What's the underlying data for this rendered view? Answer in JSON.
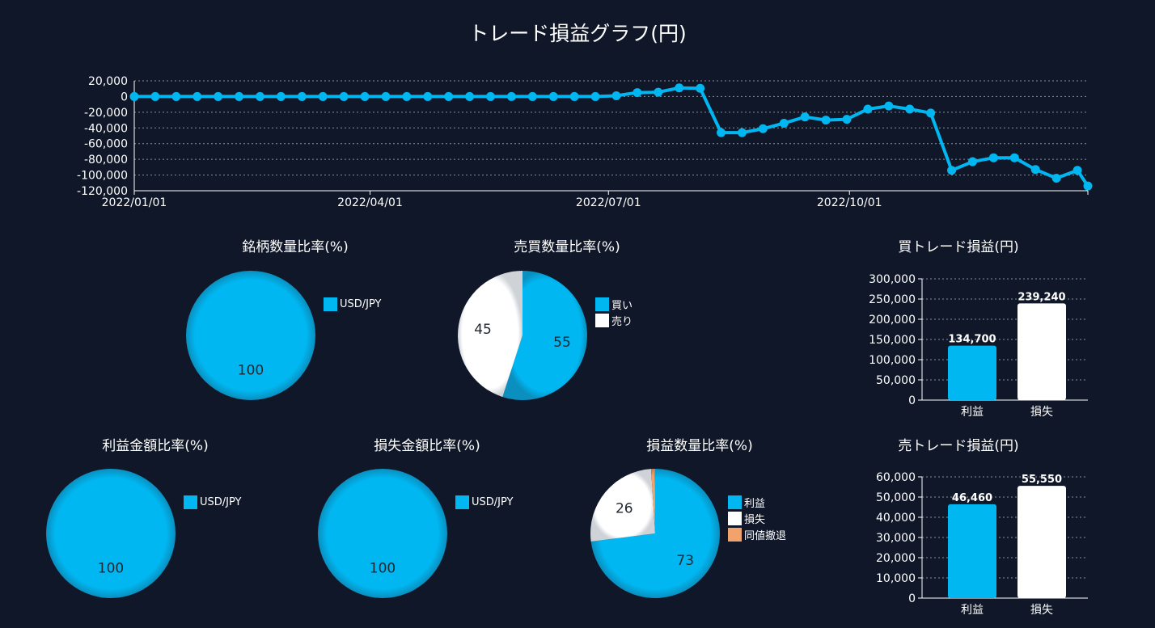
{
  "page_title": "トレード損益グラフ(円)",
  "colors": {
    "primary": "#00b7f1",
    "secondary": "#ffffff",
    "tertiary": "#f2a36b",
    "background": "#0f1729",
    "grid": "#8a9099"
  },
  "chart_data": [
    {
      "id": "pnl_line",
      "type": "line",
      "title": "",
      "x_type": "date",
      "x_tick_labels": [
        "2022/01/01",
        "2022/04/01",
        "2022/07/01",
        "2022/10/01"
      ],
      "x_ticks": [
        "2022-01-01",
        "2022-04-01",
        "2022-07-01",
        "2022-10-01"
      ],
      "xlim": [
        "2022-01-01",
        "2022-12-31"
      ],
      "y_tick_labels": [
        "20,000",
        "0",
        "-20,000",
        "-40,000",
        "-60,000",
        "-80,000",
        "-100,000",
        "-120,000"
      ],
      "y_ticks": [
        20000,
        0,
        -20000,
        -40000,
        -60000,
        -80000,
        -100000,
        -120000
      ],
      "ylim": [
        -120000,
        20000
      ],
      "grid": true,
      "series": [
        {
          "x": [
            "2022-01-01",
            "2022-01-09",
            "2022-01-17",
            "2022-01-25",
            "2022-02-02",
            "2022-02-10",
            "2022-02-18",
            "2022-02-26",
            "2022-03-06",
            "2022-03-14",
            "2022-03-22",
            "2022-03-30",
            "2022-04-07",
            "2022-04-15",
            "2022-04-23",
            "2022-05-01",
            "2022-05-09",
            "2022-05-17",
            "2022-05-25",
            "2022-06-02",
            "2022-06-10",
            "2022-06-18",
            "2022-06-26",
            "2022-07-04",
            "2022-07-12",
            "2022-07-20",
            "2022-07-28",
            "2022-08-05",
            "2022-08-13",
            "2022-08-21",
            "2022-08-29",
            "2022-09-06",
            "2022-09-14",
            "2022-09-22",
            "2022-09-30",
            "2022-10-08",
            "2022-10-16",
            "2022-10-24",
            "2022-11-01",
            "2022-11-09",
            "2022-11-17",
            "2022-11-25",
            "2022-12-03",
            "2022-12-11",
            "2022-12-19",
            "2022-12-27",
            "2022-12-31"
          ],
          "y": [
            0,
            0,
            0,
            0,
            0,
            0,
            0,
            0,
            0,
            0,
            0,
            0,
            0,
            0,
            0,
            0,
            0,
            0,
            0,
            0,
            0,
            0,
            0,
            1000,
            5000,
            5500,
            11000,
            10500,
            -46000,
            -46000,
            -41000,
            -34000,
            -26000,
            -30000,
            -29000,
            -16000,
            -12000,
            -16000,
            -21000,
            -94000,
            -83000,
            -78000,
            -78000,
            -93000,
            -104000,
            -94000,
            -114000
          ]
        }
      ]
    },
    {
      "id": "pie_symbol",
      "type": "pie",
      "title": "銘柄数量比率(%)",
      "slices": [
        {
          "label": "USD/JPY",
          "value": 100
        }
      ]
    },
    {
      "id": "pie_side",
      "type": "pie",
      "title": "売買数量比率(%)",
      "slices": [
        {
          "label": "買い",
          "value": 55
        },
        {
          "label": "売り",
          "value": 45
        }
      ]
    },
    {
      "id": "pie_profit",
      "type": "pie",
      "title": "利益金額比率(%)",
      "slices": [
        {
          "label": "USD/JPY",
          "value": 100
        }
      ]
    },
    {
      "id": "pie_loss",
      "type": "pie",
      "title": "損失金額比率(%)",
      "slices": [
        {
          "label": "USD/JPY",
          "value": 100
        }
      ]
    },
    {
      "id": "pie_count",
      "type": "pie",
      "title": "損益数量比率(%)",
      "slices": [
        {
          "label": "利益",
          "value": 73
        },
        {
          "label": "損失",
          "value": 26
        },
        {
          "label": "同値撤退",
          "value": 1,
          "show_label": false
        }
      ]
    },
    {
      "id": "bar_buy",
      "type": "bar",
      "title": "買トレード損益(円)",
      "categories": [
        "利益",
        "損失"
      ],
      "values": [
        134700,
        239240
      ],
      "value_labels": [
        "134,700",
        "239,240"
      ],
      "ylim": [
        0,
        300000
      ],
      "y_ticks": [
        0,
        50000,
        100000,
        150000,
        200000,
        250000,
        300000
      ],
      "y_tick_labels": [
        "0",
        "50,000",
        "100,000",
        "150,000",
        "200,000",
        "250,000",
        "300,000"
      ],
      "grid": true
    },
    {
      "id": "bar_sell",
      "type": "bar",
      "title": "売トレード損益(円)",
      "categories": [
        "利益",
        "損失"
      ],
      "values": [
        46460,
        55550
      ],
      "value_labels": [
        "46,460",
        "55,550"
      ],
      "ylim": [
        0,
        60000
      ],
      "y_ticks": [
        0,
        10000,
        20000,
        30000,
        40000,
        50000,
        60000
      ],
      "y_tick_labels": [
        "0",
        "10,000",
        "20,000",
        "30,000",
        "40,000",
        "50,000",
        "60,000"
      ],
      "grid": true
    }
  ]
}
